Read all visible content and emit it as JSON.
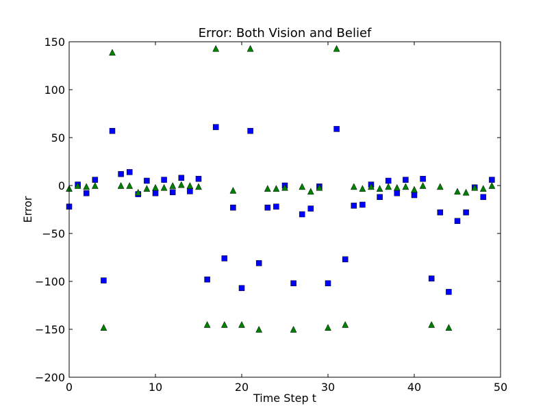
{
  "chart_data": {
    "type": "scatter",
    "title": "Error: Both Vision and Belief",
    "xlabel": "Time Step t",
    "ylabel": "Error",
    "xlim": [
      0,
      50
    ],
    "ylim": [
      -200,
      150
    ],
    "xticks": [
      0,
      10,
      20,
      30,
      40,
      50
    ],
    "yticks": [
      -200,
      -150,
      -100,
      -50,
      0,
      50,
      100,
      150
    ],
    "grid": false,
    "series": [
      {
        "marker": "square",
        "color": "#0000ff",
        "x": [
          0,
          1,
          2,
          3,
          4,
          5,
          6,
          7,
          8,
          9,
          10,
          11,
          12,
          13,
          14,
          15,
          16,
          17,
          18,
          19,
          20,
          21,
          22,
          23,
          24,
          25,
          26,
          27,
          28,
          29,
          30,
          31,
          32,
          33,
          34,
          35,
          36,
          37,
          38,
          39,
          40,
          41,
          42,
          43,
          44,
          45,
          46,
          47,
          48,
          49
        ],
        "values": [
          -22,
          1,
          -8,
          6,
          -99,
          57,
          12,
          14,
          -9,
          5,
          -8,
          6,
          -7,
          8,
          -6,
          7,
          -98,
          61,
          -76,
          -23,
          -107,
          57,
          -81,
          -23,
          -22,
          0,
          -102,
          -30,
          -24,
          -1,
          -102,
          59,
          -77,
          -21,
          -20,
          1,
          -12,
          5,
          -8,
          6,
          -10,
          7,
          -97,
          -28,
          -111,
          -37,
          -28,
          -2,
          -12,
          6
        ]
      },
      {
        "marker": "triangle",
        "color": "#008000",
        "x": [
          0,
          1,
          2,
          3,
          4,
          5,
          6,
          7,
          8,
          9,
          10,
          11,
          12,
          13,
          14,
          15,
          16,
          17,
          18,
          19,
          20,
          21,
          22,
          23,
          24,
          25,
          26,
          27,
          28,
          29,
          30,
          31,
          32,
          33,
          34,
          35,
          36,
          37,
          38,
          39,
          40,
          41,
          42,
          43,
          44,
          45,
          46,
          47,
          48,
          49
        ],
        "values": [
          -3,
          0,
          -1,
          0,
          -148,
          139,
          0,
          0,
          -7,
          -3,
          -2,
          -2,
          0,
          1,
          0,
          -1,
          -145,
          143,
          -145,
          -5,
          -145,
          143,
          -150,
          -3,
          -3,
          -2,
          -150,
          -1,
          -6,
          -2,
          -148,
          143,
          -145,
          -1,
          -3,
          -1,
          -3,
          -1,
          -2,
          -1,
          -4,
          0,
          -145,
          -1,
          -148,
          -6,
          -7,
          -2,
          -3,
          0
        ]
      }
    ]
  }
}
